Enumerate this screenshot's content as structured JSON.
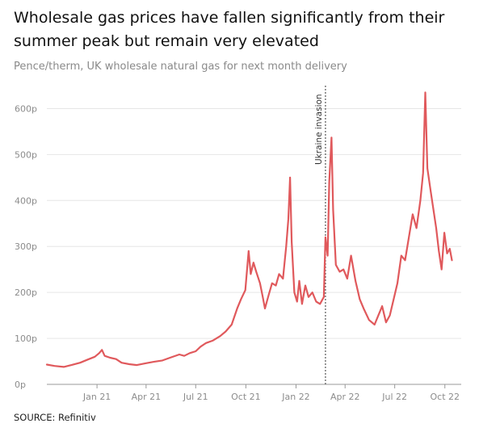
{
  "header": {
    "title": "Wholesale gas prices have fallen significantly from their summer peak but remain very elevated",
    "subtitle": "Pence/therm, UK wholesale natural gas for next month delivery"
  },
  "footer": {
    "source": "SOURCE: Refinitiv"
  },
  "colors": {
    "line": "#e0595c",
    "grid": "#e6e6e6",
    "axis": "#999999",
    "annotation_line": "#555555"
  },
  "chart_data": {
    "type": "line",
    "title": "Wholesale gas prices have fallen significantly from their summer peak but remain very elevated",
    "subtitle": "Pence/therm, UK wholesale natural gas for next month delivery",
    "xlabel": "",
    "ylabel": "",
    "x_range": [
      "2020-10-01",
      "2022-10-31"
    ],
    "ylim": [
      0,
      650
    ],
    "y_ticks": [
      0,
      100,
      200,
      300,
      400,
      500,
      600
    ],
    "y_tick_labels": [
      "0p",
      "100p",
      "200p",
      "300p",
      "400p",
      "500p",
      "600p"
    ],
    "x_ticks": [
      "2021-01-01",
      "2021-04-01",
      "2021-07-01",
      "2021-10-01",
      "2022-01-01",
      "2022-04-01",
      "2022-07-01",
      "2022-10-01"
    ],
    "x_tick_labels": [
      "Jan 21",
      "Apr 21",
      "Jul 21",
      "Oct 21",
      "Jan 22",
      "Apr 22",
      "Jul 22",
      "Oct 22"
    ],
    "grid": true,
    "legend": "none",
    "annotations": [
      {
        "label": "Ukraine invasion",
        "x": "2022-02-24"
      }
    ],
    "series": [
      {
        "values": [
          [
            "2020-10-01",
            43
          ],
          [
            "2020-10-15",
            40
          ],
          [
            "2020-11-01",
            38
          ],
          [
            "2020-11-15",
            42
          ],
          [
            "2020-12-01",
            47
          ],
          [
            "2020-12-15",
            54
          ],
          [
            "2020-12-28",
            60
          ],
          [
            "2021-01-05",
            68
          ],
          [
            "2021-01-10",
            75
          ],
          [
            "2021-01-15",
            62
          ],
          [
            "2021-01-25",
            58
          ],
          [
            "2021-02-05",
            55
          ],
          [
            "2021-02-15",
            47
          ],
          [
            "2021-03-01",
            44
          ],
          [
            "2021-03-15",
            42
          ],
          [
            "2021-04-01",
            46
          ],
          [
            "2021-04-15",
            49
          ],
          [
            "2021-05-01",
            52
          ],
          [
            "2021-05-15",
            58
          ],
          [
            "2021-06-01",
            65
          ],
          [
            "2021-06-10",
            62
          ],
          [
            "2021-06-20",
            68
          ],
          [
            "2021-07-01",
            72
          ],
          [
            "2021-07-10",
            82
          ],
          [
            "2021-07-20",
            90
          ],
          [
            "2021-08-01",
            95
          ],
          [
            "2021-08-15",
            105
          ],
          [
            "2021-08-25",
            115
          ],
          [
            "2021-09-05",
            130
          ],
          [
            "2021-09-15",
            165
          ],
          [
            "2021-09-22",
            185
          ],
          [
            "2021-09-30",
            205
          ],
          [
            "2021-10-06",
            290
          ],
          [
            "2021-10-10",
            240
          ],
          [
            "2021-10-15",
            265
          ],
          [
            "2021-10-20",
            245
          ],
          [
            "2021-10-27",
            220
          ],
          [
            "2021-11-01",
            190
          ],
          [
            "2021-11-05",
            165
          ],
          [
            "2021-11-12",
            195
          ],
          [
            "2021-11-18",
            220
          ],
          [
            "2021-11-25",
            215
          ],
          [
            "2021-12-01",
            240
          ],
          [
            "2021-12-08",
            230
          ],
          [
            "2021-12-14",
            300
          ],
          [
            "2021-12-18",
            360
          ],
          [
            "2021-12-21",
            450
          ],
          [
            "2021-12-24",
            310
          ],
          [
            "2021-12-29",
            200
          ],
          [
            "2022-01-03",
            180
          ],
          [
            "2022-01-07",
            225
          ],
          [
            "2022-01-12",
            175
          ],
          [
            "2022-01-18",
            215
          ],
          [
            "2022-01-24",
            190
          ],
          [
            "2022-01-31",
            200
          ],
          [
            "2022-02-07",
            180
          ],
          [
            "2022-02-14",
            175
          ],
          [
            "2022-02-21",
            190
          ],
          [
            "2022-02-24",
            320
          ],
          [
            "2022-02-28",
            280
          ],
          [
            "2022-03-03",
            440
          ],
          [
            "2022-03-07",
            537
          ],
          [
            "2022-03-10",
            380
          ],
          [
            "2022-03-15",
            260
          ],
          [
            "2022-03-22",
            245
          ],
          [
            "2022-03-29",
            250
          ],
          [
            "2022-04-05",
            230
          ],
          [
            "2022-04-12",
            280
          ],
          [
            "2022-04-20",
            225
          ],
          [
            "2022-04-28",
            185
          ],
          [
            "2022-05-05",
            165
          ],
          [
            "2022-05-15",
            140
          ],
          [
            "2022-05-25",
            130
          ],
          [
            "2022-06-01",
            150
          ],
          [
            "2022-06-08",
            170
          ],
          [
            "2022-06-15",
            135
          ],
          [
            "2022-06-22",
            150
          ],
          [
            "2022-06-29",
            185
          ],
          [
            "2022-07-06",
            220
          ],
          [
            "2022-07-13",
            280
          ],
          [
            "2022-07-20",
            270
          ],
          [
            "2022-07-27",
            320
          ],
          [
            "2022-08-03",
            370
          ],
          [
            "2022-08-10",
            340
          ],
          [
            "2022-08-17",
            400
          ],
          [
            "2022-08-22",
            460
          ],
          [
            "2022-08-26",
            635
          ],
          [
            "2022-08-30",
            470
          ],
          [
            "2022-09-05",
            420
          ],
          [
            "2022-09-10",
            380
          ],
          [
            "2022-09-15",
            340
          ],
          [
            "2022-09-20",
            290
          ],
          [
            "2022-09-25",
            250
          ],
          [
            "2022-09-30",
            330
          ],
          [
            "2022-10-05",
            285
          ],
          [
            "2022-10-10",
            295
          ],
          [
            "2022-10-14",
            270
          ]
        ]
      }
    ]
  }
}
